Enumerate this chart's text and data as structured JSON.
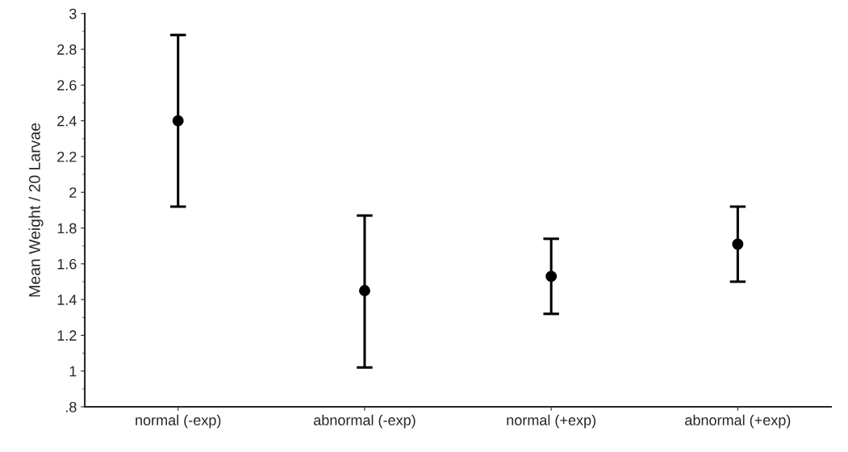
{
  "chart_data": {
    "type": "scatter",
    "ylabel": "Mean Weight / 20 Larvae",
    "categories": [
      "normal (-exp)",
      "abnormal (-exp)",
      "normal (+exp)",
      "abnormal (+exp)"
    ],
    "series": [
      {
        "color": "#000000",
        "values": [
          2.4,
          1.45,
          1.53,
          1.71
        ],
        "errors": [
          [
            1.92,
            2.88
          ],
          [
            1.02,
            1.87
          ],
          [
            1.32,
            1.74
          ],
          [
            1.5,
            1.92
          ]
        ]
      }
    ],
    "ylim": [
      0.8,
      3
    ],
    "yticks": [
      {
        "value": 0.8,
        "label": ".8"
      },
      1,
      1.2,
      1.4,
      1.6,
      1.8,
      2,
      2.2,
      2.4,
      2.6,
      2.8,
      3
    ],
    "marker": "circle",
    "grid": false,
    "legend": false
  }
}
